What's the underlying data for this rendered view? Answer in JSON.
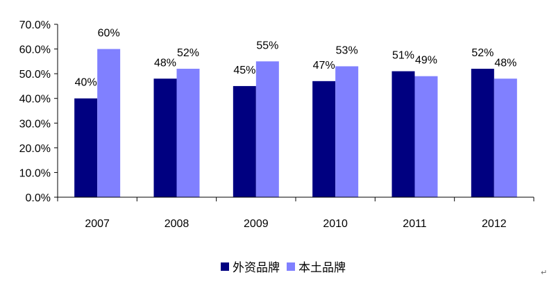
{
  "chart_data": {
    "type": "bar",
    "categories": [
      "2007",
      "2008",
      "2009",
      "2010",
      "2011",
      "2012"
    ],
    "series": [
      {
        "name": "外资品牌",
        "values": [
          0.4,
          0.48,
          0.45,
          0.47,
          0.51,
          0.52
        ],
        "labels": [
          "40%",
          "48%",
          "45%",
          "47%",
          "51%",
          "52%"
        ],
        "color": "#000080"
      },
      {
        "name": "本土品牌",
        "values": [
          0.6,
          0.52,
          0.55,
          0.53,
          0.49,
          0.48
        ],
        "labels": [
          "60%",
          "52%",
          "55%",
          "53%",
          "49%",
          "48%"
        ],
        "color": "#8080FF"
      }
    ],
    "ylim": [
      0,
      0.7
    ],
    "yticks": [
      0,
      0.1,
      0.2,
      0.3,
      0.4,
      0.5,
      0.6,
      0.7
    ],
    "ytick_labels": [
      "0.0%",
      "10.0%",
      "20.0%",
      "30.0%",
      "40.0%",
      "50.0%",
      "60.0%",
      "70.0%"
    ],
    "grid": false,
    "legend_position": "bottom"
  },
  "legend": {
    "items": [
      {
        "label": "外资品牌",
        "color": "#000080"
      },
      {
        "label": "本土品牌",
        "color": "#8080FF"
      }
    ]
  },
  "return_mark": "↵"
}
